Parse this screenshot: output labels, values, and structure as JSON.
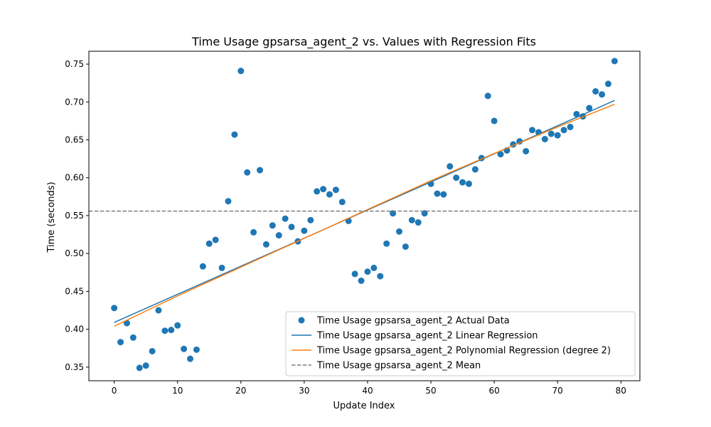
{
  "chart_data": {
    "type": "scatter",
    "title": "Time Usage gpsarsa_agent_2 vs. Values with Regression Fits",
    "xlabel": "Update Index",
    "ylabel": "Time (seconds)",
    "xlim": [
      -4,
      83
    ],
    "ylim": [
      0.332,
      0.767
    ],
    "xticks": [
      0,
      10,
      20,
      30,
      40,
      50,
      60,
      70,
      80
    ],
    "xtick_labels": [
      "0",
      "10",
      "20",
      "30",
      "40",
      "50",
      "60",
      "70",
      "80"
    ],
    "yticks": [
      0.35,
      0.4,
      0.45,
      0.5,
      0.55,
      0.6,
      0.65,
      0.7,
      0.75
    ],
    "ytick_labels": [
      "0.35",
      "0.40",
      "0.45",
      "0.50",
      "0.55",
      "0.60",
      "0.65",
      "0.70",
      "0.75"
    ],
    "grid": false,
    "legend_position": "lower-right",
    "x": [
      0,
      1,
      2,
      3,
      4,
      5,
      6,
      7,
      8,
      9,
      10,
      11,
      12,
      13,
      14,
      15,
      16,
      17,
      18,
      19,
      20,
      21,
      22,
      23,
      24,
      25,
      26,
      27,
      28,
      29,
      30,
      31,
      32,
      33,
      34,
      35,
      36,
      37,
      38,
      39,
      40,
      41,
      42,
      43,
      44,
      45,
      46,
      47,
      48,
      49,
      50,
      51,
      52,
      53,
      54,
      55,
      56,
      57,
      58,
      59,
      60,
      61,
      62,
      63,
      64,
      65,
      66,
      67,
      68,
      69,
      70,
      71,
      72,
      73,
      74,
      75,
      76,
      77,
      78,
      79
    ],
    "series": [
      {
        "name": "Time Usage gpsarsa_agent_2 Actual Data",
        "kind": "scatter",
        "color": "#1f77b4",
        "values": [
          0.428,
          0.383,
          0.408,
          0.389,
          0.349,
          0.352,
          0.371,
          0.425,
          0.398,
          0.399,
          0.405,
          0.374,
          0.361,
          0.373,
          0.483,
          0.513,
          0.518,
          0.481,
          0.569,
          0.657,
          0.741,
          0.607,
          0.528,
          0.61,
          0.512,
          0.537,
          0.524,
          0.546,
          0.535,
          0.516,
          0.53,
          0.544,
          0.582,
          0.585,
          0.578,
          0.584,
          0.568,
          0.543,
          0.473,
          0.464,
          0.476,
          0.481,
          0.47,
          0.513,
          0.553,
          0.529,
          0.509,
          0.544,
          0.541,
          0.553,
          0.592,
          0.579,
          0.578,
          0.615,
          0.6,
          0.594,
          0.592,
          0.611,
          0.626,
          0.708,
          0.675,
          0.631,
          0.636,
          0.644,
          0.648,
          0.635,
          0.663,
          0.66,
          0.651,
          0.658,
          0.656,
          0.663,
          0.667,
          0.684,
          0.681,
          0.692,
          0.714,
          0.71,
          0.724,
          0.754
        ]
      },
      {
        "name": "Time Usage gpsarsa_agent_2 Linear Regression",
        "kind": "line",
        "color": "#1f77b4",
        "x": [
          0,
          79
        ],
        "values": [
          0.409,
          0.702
        ]
      },
      {
        "name": "Time Usage gpsarsa_agent_2 Polynomial Regression (degree 2)",
        "kind": "line",
        "color": "#ff7f0e",
        "x": [
          0,
          10,
          20,
          30,
          40,
          50,
          60,
          70,
          79
        ],
        "values": [
          0.404,
          0.444,
          0.482,
          0.52,
          0.558,
          0.596,
          0.632,
          0.667,
          0.697
        ]
      },
      {
        "name": "Time Usage gpsarsa_agent_2 Mean",
        "kind": "hline",
        "color": "#7f7f7f",
        "dash": "dashed",
        "value": 0.556
      }
    ]
  }
}
